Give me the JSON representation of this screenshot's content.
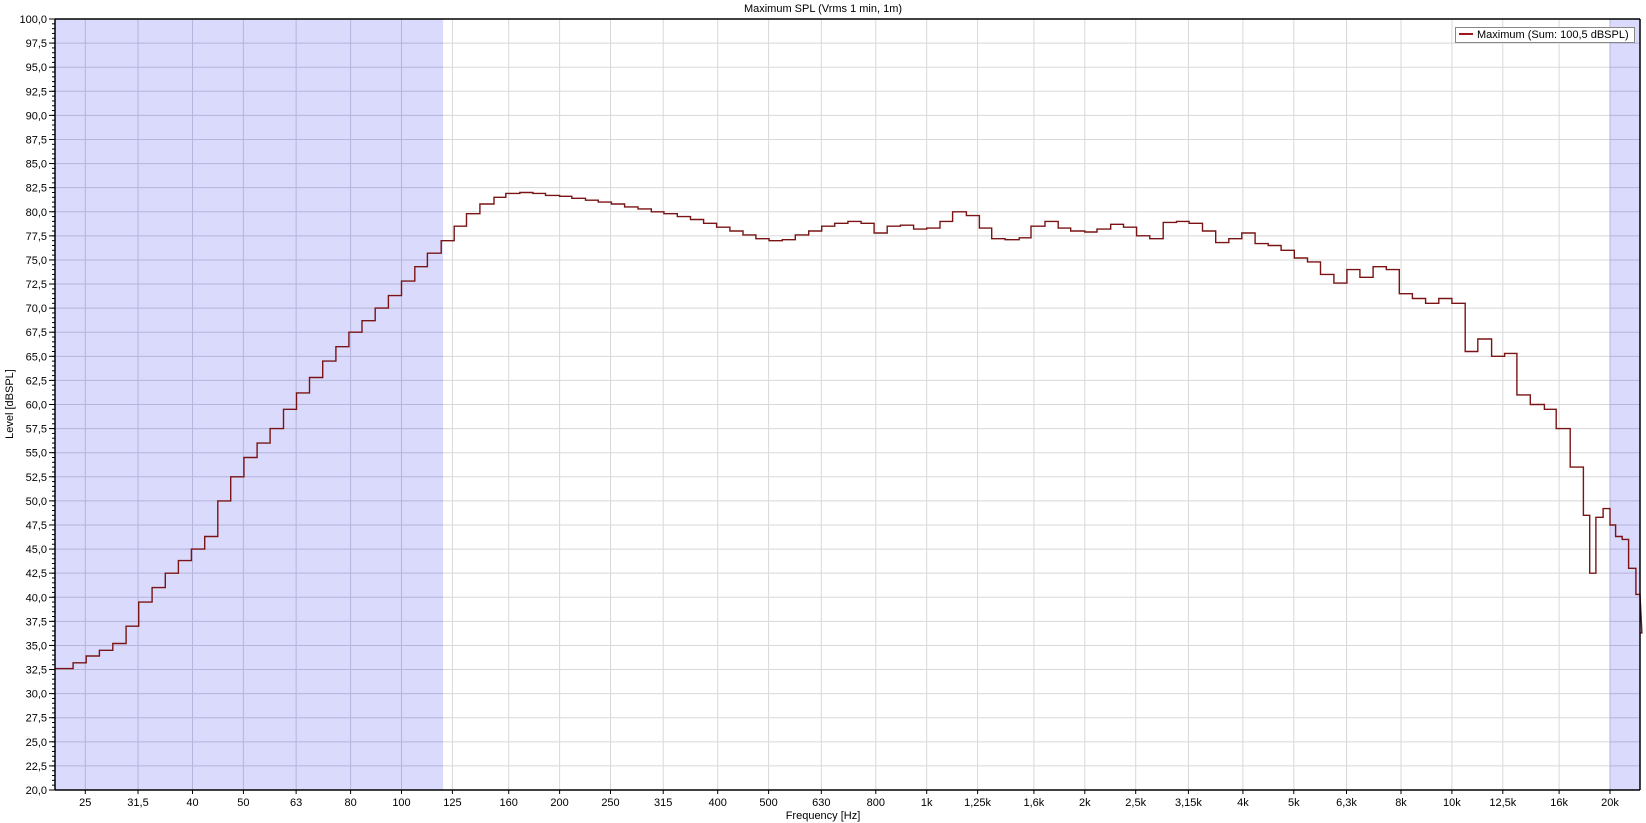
{
  "chart_data": {
    "type": "line",
    "step": true,
    "title": "Maximum SPL (Vrms 1 min, 1m)",
    "xlabel": "Frequency [Hz]",
    "ylabel": "Level [dBSPL]",
    "xscale": "log",
    "xlim": [
      21.9,
      23500
    ],
    "ylim": [
      20,
      100
    ],
    "grid": true,
    "legend_position": "top-right",
    "x_ticks": [
      {
        "f": 25,
        "label": "25"
      },
      {
        "f": 31.5,
        "label": "31,5"
      },
      {
        "f": 40,
        "label": "40"
      },
      {
        "f": 50,
        "label": "50"
      },
      {
        "f": 63,
        "label": "63"
      },
      {
        "f": 80,
        "label": "80"
      },
      {
        "f": 100,
        "label": "100"
      },
      {
        "f": 125,
        "label": "125"
      },
      {
        "f": 160,
        "label": "160"
      },
      {
        "f": 200,
        "label": "200"
      },
      {
        "f": 250,
        "label": "250"
      },
      {
        "f": 315,
        "label": "315"
      },
      {
        "f": 400,
        "label": "400"
      },
      {
        "f": 500,
        "label": "500"
      },
      {
        "f": 630,
        "label": "630"
      },
      {
        "f": 800,
        "label": "800"
      },
      {
        "f": 1000,
        "label": "1k"
      },
      {
        "f": 1250,
        "label": "1,25k"
      },
      {
        "f": 1600,
        "label": "1,6k"
      },
      {
        "f": 2000,
        "label": "2k"
      },
      {
        "f": 2500,
        "label": "2,5k"
      },
      {
        "f": 3150,
        "label": "3,15k"
      },
      {
        "f": 4000,
        "label": "4k"
      },
      {
        "f": 5000,
        "label": "5k"
      },
      {
        "f": 6300,
        "label": "6,3k"
      },
      {
        "f": 8000,
        "label": "8k"
      },
      {
        "f": 10000,
        "label": "10k"
      },
      {
        "f": 12500,
        "label": "12,5k"
      },
      {
        "f": 16000,
        "label": "16k"
      },
      {
        "f": 20000,
        "label": "20k"
      }
    ],
    "y_ticks": [
      "20,0",
      "22,5",
      "25,0",
      "27,5",
      "30,0",
      "32,5",
      "35,0",
      "37,5",
      "40,0",
      "42,5",
      "45,0",
      "47,5",
      "50,0",
      "52,5",
      "55,0",
      "57,5",
      "60,0",
      "62,5",
      "65,0",
      "67,5",
      "70,0",
      "72,5",
      "75,0",
      "77,5",
      "80,0",
      "82,5",
      "85,0",
      "87,5",
      "90,0",
      "92,5",
      "95,0",
      "97,5",
      "100,0"
    ],
    "shaded_ranges": [
      [
        21.9,
        120
      ],
      [
        20000,
        23500
      ]
    ],
    "colors": {
      "series": "#7a1414",
      "shade": "#dadafc",
      "grid": "#d8d8d8",
      "shade_grid": "#b4b4dc"
    },
    "series": [
      {
        "name": "Maximum (Sum: 100,5 dBSPL)",
        "x": [
          21.9,
          23.7,
          25.1,
          26.6,
          28.2,
          29.9,
          31.6,
          33.5,
          35.5,
          37.6,
          39.8,
          42.2,
          44.7,
          47.3,
          50.1,
          53.1,
          56.2,
          59.6,
          63.1,
          66.8,
          70.8,
          75,
          79.4,
          84.1,
          89.1,
          94.4,
          100,
          106,
          112,
          119,
          126,
          133,
          141,
          150,
          158,
          168,
          178,
          188,
          200,
          211,
          224,
          237,
          251,
          266,
          282,
          299,
          316,
          335,
          355,
          376,
          398,
          422,
          447,
          473,
          501,
          531,
          562,
          596,
          631,
          668,
          708,
          750,
          794,
          841,
          891,
          944,
          1000,
          1060,
          1120,
          1190,
          1260,
          1330,
          1410,
          1500,
          1580,
          1680,
          1780,
          1880,
          2000,
          2110,
          2240,
          2370,
          2510,
          2660,
          2820,
          2990,
          3160,
          3350,
          3550,
          3760,
          3980,
          4220,
          4470,
          4730,
          5010,
          5310,
          5620,
          5960,
          6310,
          6680,
          7080,
          7500,
          7940,
          8410,
          8910,
          9440,
          10000,
          10600,
          11200,
          11900,
          12600,
          13300,
          14100,
          15000,
          15800,
          16800,
          17800,
          18300,
          18800,
          19400,
          20000,
          20500,
          21100,
          21700,
          22400,
          23000
        ],
        "values": [
          32.6,
          33.2,
          33.9,
          34.5,
          35.2,
          37.0,
          39.5,
          41.0,
          42.5,
          43.8,
          45.0,
          46.3,
          50.0,
          52.5,
          54.5,
          56.0,
          57.5,
          59.5,
          61.2,
          62.8,
          64.5,
          66.0,
          67.5,
          68.7,
          70.0,
          71.3,
          72.8,
          74.3,
          75.7,
          77.0,
          78.5,
          79.8,
          80.8,
          81.5,
          81.9,
          82.0,
          81.9,
          81.7,
          81.6,
          81.4,
          81.2,
          81.0,
          80.8,
          80.5,
          80.3,
          80.0,
          79.8,
          79.5,
          79.2,
          78.8,
          78.4,
          78.0,
          77.6,
          77.2,
          77.0,
          77.1,
          77.6,
          78.0,
          78.5,
          78.8,
          79.0,
          78.8,
          77.8,
          78.5,
          78.6,
          78.2,
          78.3,
          79.0,
          80.0,
          79.6,
          78.3,
          77.2,
          77.1,
          77.3,
          78.5,
          79.0,
          78.3,
          78.0,
          77.9,
          78.2,
          78.7,
          78.4,
          77.5,
          77.2,
          78.9,
          79.0,
          78.8,
          78.0,
          76.8,
          77.2,
          77.8,
          76.7,
          76.5,
          76.0,
          75.2,
          74.8,
          73.5,
          72.6,
          74.0,
          73.2,
          74.3,
          74.0,
          71.5,
          71.0,
          70.5,
          71.0,
          70.5,
          65.5,
          66.8,
          65.0,
          65.3,
          61.0,
          60.0,
          59.5,
          57.5,
          53.5,
          48.5,
          42.5,
          48.3,
          49.2,
          47.5,
          46.3,
          46.0,
          43.0,
          40.3,
          36.3
        ]
      }
    ]
  }
}
